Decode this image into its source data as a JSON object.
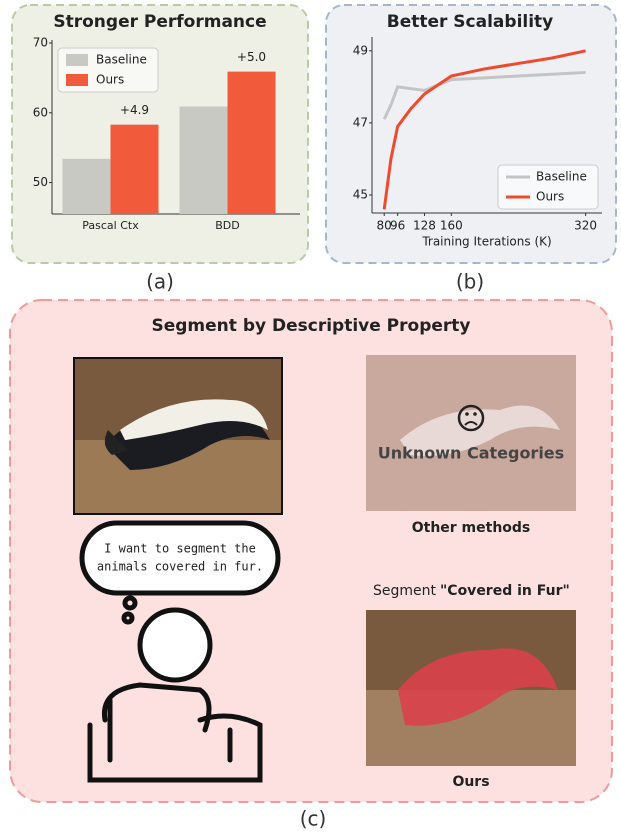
{
  "chart_data": [
    {
      "type": "bar",
      "title": "Stronger Performance",
      "caption": "(a)",
      "categories": [
        "Pascal Ctx",
        "BDD"
      ],
      "series": [
        {
          "name": "Baseline",
          "color": "#c9c9c3",
          "values": [
            53.4,
            60.9
          ]
        },
        {
          "name": "Ours",
          "color": "#f25a3c",
          "values": [
            58.3,
            65.9
          ]
        }
      ],
      "annotations": [
        "+4.9",
        "+5.0"
      ],
      "ylim": [
        45.5,
        70
      ],
      "yticks": [
        50,
        60,
        70
      ],
      "legend": "upper left"
    },
    {
      "type": "line",
      "title": "Better Scalability",
      "caption": "(b)",
      "xlabel": "Training Iterations (K)",
      "x": [
        80,
        88,
        96,
        112,
        128,
        160,
        200,
        240,
        280,
        320
      ],
      "series": [
        {
          "name": "Baseline",
          "color": "#c4c4c4",
          "values": [
            47.1,
            47.5,
            48.0,
            47.95,
            47.9,
            48.2,
            48.25,
            48.3,
            48.35,
            48.4
          ]
        },
        {
          "name": "Ours",
          "color": "#f04a2e",
          "values": [
            44.6,
            46.0,
            46.9,
            47.4,
            47.8,
            48.3,
            48.5,
            48.65,
            48.8,
            49.0
          ]
        }
      ],
      "xlim": [
        75,
        330
      ],
      "xticks": [
        80,
        96,
        128,
        160,
        320
      ],
      "ylim": [
        44.5,
        49.3
      ],
      "yticks": [
        45,
        47,
        49
      ],
      "legend": "lower right"
    }
  ],
  "panel_c": {
    "title": "Segment by Descriptive Property",
    "speech": [
      "I want to segment the",
      "animals covered in fur."
    ],
    "unknown": "Unknown Categories",
    "other_label": "Other methods",
    "segment_prefix": "Segment",
    "segment_query": "\"Covered in Fur\"",
    "ours_label": "Ours",
    "caption": "(c)"
  }
}
